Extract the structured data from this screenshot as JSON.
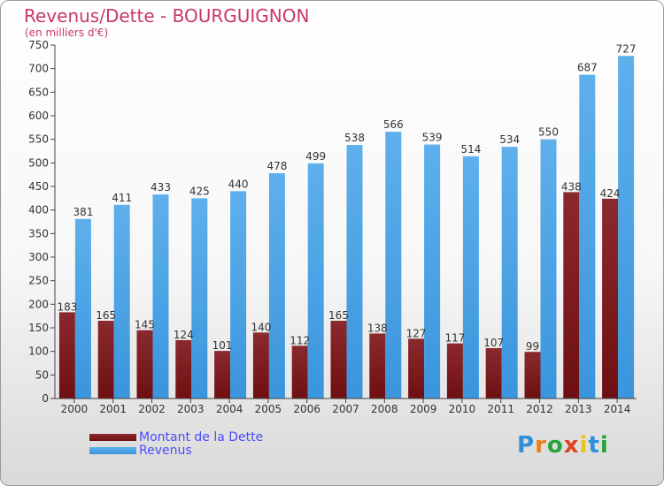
{
  "title": "Revenus/Dette - BOURGUIGNON",
  "subtitle": "(en milliers d'€)",
  "logo": {
    "letters": [
      "P",
      "r",
      "o",
      "x",
      "i",
      "t",
      "i"
    ],
    "colors": [
      "#2f8fd8",
      "#e8821c",
      "#27a33a",
      "#e0421e",
      "#e8c51c",
      "#2f8fd8",
      "#27a33a"
    ]
  },
  "colors": {
    "debt": "#6e0f12",
    "revenue": "#3a95dd"
  },
  "chart_data": {
    "type": "bar",
    "categories": [
      "2000",
      "2001",
      "2002",
      "2003",
      "2004",
      "2005",
      "2006",
      "2007",
      "2008",
      "2009",
      "2010",
      "2011",
      "2012",
      "2013",
      "2014"
    ],
    "series": [
      {
        "name": "Montant de la Dette",
        "values": [
          183,
          165,
          145,
          124,
          101,
          140,
          112,
          165,
          138,
          127,
          117,
          107,
          99,
          438,
          424
        ]
      },
      {
        "name": "Revenus",
        "values": [
          381,
          411,
          433,
          425,
          440,
          478,
          499,
          538,
          566,
          539,
          514,
          534,
          550,
          687,
          727
        ]
      }
    ],
    "yticks": [
      0,
      50,
      100,
      150,
      200,
      250,
      300,
      350,
      400,
      450,
      500,
      550,
      600,
      650,
      700,
      750
    ],
    "ylim": [
      0,
      750
    ],
    "xlabel": "",
    "ylabel": "",
    "grid": false,
    "legend": "bottom-left"
  }
}
